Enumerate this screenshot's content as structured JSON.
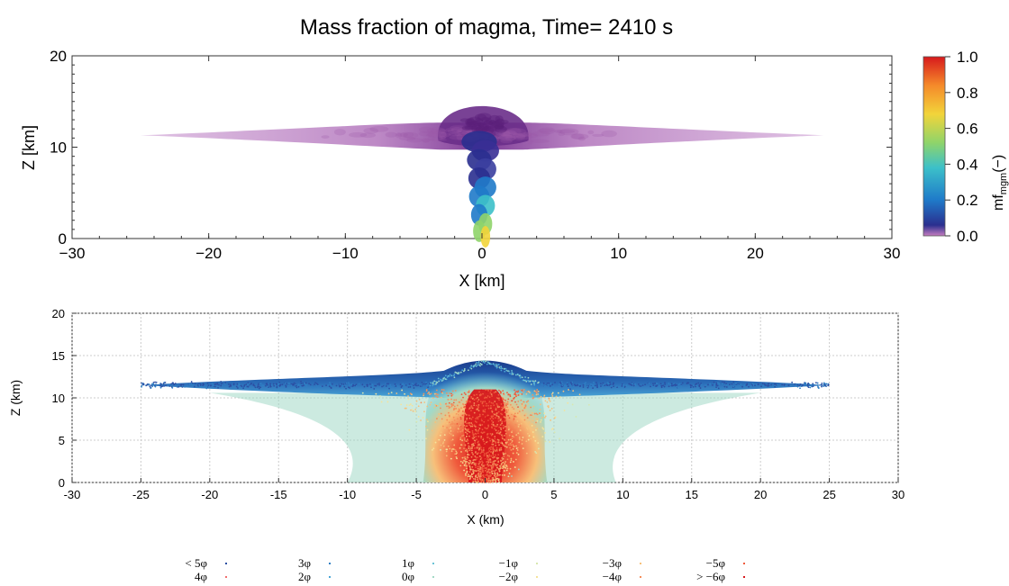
{
  "chart_data": [
    {
      "type": "heatmap",
      "title": "Mass fraction of magma, Time=   2410 s",
      "xlabel": "X [km]",
      "ylabel": "Z [km]",
      "xlim": [
        -30,
        30
      ],
      "ylim": [
        0,
        20
      ],
      "x_ticks": [
        "−30",
        "−20",
        "−10",
        "0",
        "10",
        "20",
        "30"
      ],
      "x_tick_values": [
        -30,
        -20,
        -10,
        0,
        10,
        20,
        30
      ],
      "y_ticks": [
        "0",
        "10",
        "20"
      ],
      "y_tick_values": [
        0,
        10,
        20
      ],
      "grid": false,
      "colorbar": {
        "label_base": "mf",
        "label_sub": "mgm",
        "label_suffix": "(−)",
        "range": [
          0,
          1
        ],
        "ticks": [
          "0.0",
          "0.2",
          "0.4",
          "0.6",
          "0.8",
          "1.0"
        ],
        "tick_values": [
          0,
          0.2,
          0.4,
          0.6,
          0.8,
          1.0
        ],
        "colors": [
          "#c77dc0",
          "#2a2f8f",
          "#1f7ac9",
          "#3cc0c9",
          "#8fd46a",
          "#f2d43a",
          "#f58a2a",
          "#d7191c"
        ]
      },
      "features": {
        "umbrella_cloud_extent_km": [
          -25,
          25
        ],
        "umbrella_cloud_height_km": 11.3,
        "plume_top_height_km": 14.5,
        "cloud_color": "#b07ab8",
        "core_color": "#6a2d8a"
      }
    },
    {
      "type": "scatter",
      "xlabel": "X (km)",
      "ylabel": "Z (km)",
      "xlim": [
        -30,
        30
      ],
      "ylim": [
        0,
        20
      ],
      "x_ticks": [
        "-30",
        "-25",
        "-20",
        "-15",
        "-10",
        "-5",
        "0",
        "5",
        "10",
        "15",
        "20",
        "25",
        "30"
      ],
      "x_tick_values": [
        -30,
        -25,
        -20,
        -15,
        -10,
        -5,
        0,
        5,
        10,
        15,
        20,
        25,
        30
      ],
      "y_ticks": [
        "0",
        "5",
        "10",
        "15",
        "20"
      ],
      "y_tick_values": [
        0,
        5,
        10,
        15,
        20
      ],
      "grid": true,
      "legend_position": "bottom",
      "legend": [
        {
          "label": "< 5φ",
          "color": "#2c4fa3"
        },
        {
          "label": "4φ",
          "color": "#f26d6d"
        },
        {
          "label": "3φ",
          "color": "#2f7fc4"
        },
        {
          "label": "2φ",
          "color": "#4aa6d6"
        },
        {
          "label": "1φ",
          "color": "#6bc3d6"
        },
        {
          "label": "0φ",
          "color": "#a3d9c6"
        },
        {
          "label": "−1φ",
          "color": "#d8e8b0"
        },
        {
          "label": "−2φ",
          "color": "#f5e39b"
        },
        {
          "label": "−3φ",
          "color": "#f7c07a"
        },
        {
          "label": "−4φ",
          "color": "#f58e5a"
        },
        {
          "label": "−5φ",
          "color": "#ef5a3c"
        },
        {
          "label": "> −6φ",
          "color": "#d7191c"
        }
      ],
      "features": {
        "umbrella_extent_km": [
          -25,
          25
        ],
        "umbrella_height_km": 11.5,
        "top_height_km": 14.8
      }
    }
  ]
}
